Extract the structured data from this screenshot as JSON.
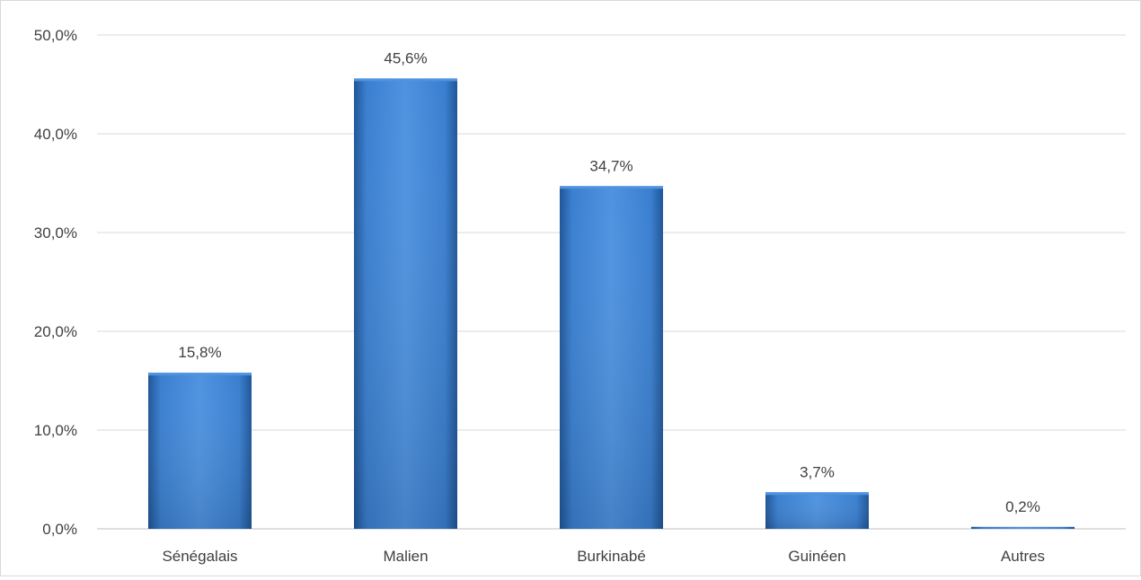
{
  "chart_data": {
    "type": "bar",
    "categories": [
      "Sénégalais",
      "Malien",
      "Burkinabé",
      "Guinéen",
      "Autres"
    ],
    "values": [
      15.8,
      45.6,
      34.7,
      3.7,
      0.2
    ],
    "data_labels": [
      "15,8%",
      "45,6%",
      "34,7%",
      "3,7%",
      "0,2%"
    ],
    "y_ticks": [
      0,
      10,
      20,
      30,
      40,
      50
    ],
    "y_tick_labels": [
      "0,0%",
      "10,0%",
      "20,0%",
      "30,0%",
      "40,0%",
      "50,0%"
    ],
    "ylim": [
      0,
      50
    ],
    "grid": true,
    "title": "",
    "xlabel": "",
    "ylabel": "",
    "bar_color": "#3a7fd0",
    "bar_color_dark": "#1f5597",
    "bar_color_light": "#4f93e0"
  }
}
